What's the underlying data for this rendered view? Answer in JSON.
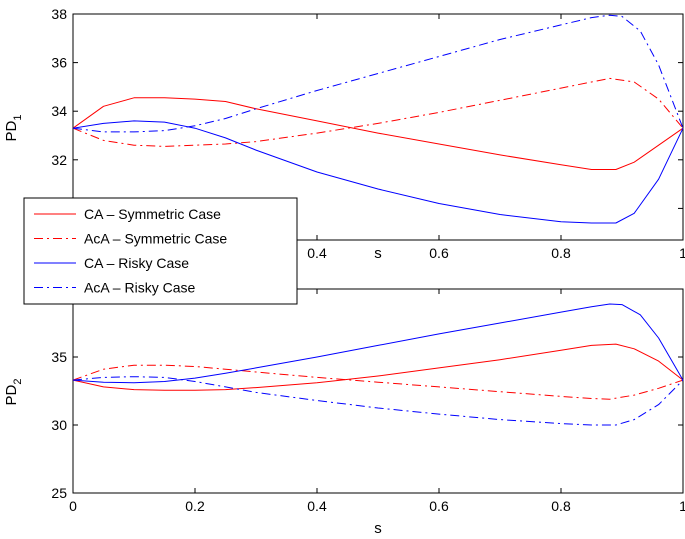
{
  "chart_data": [
    {
      "type": "line",
      "xlabel": "s",
      "ylabel": "PD",
      "ylabel_subscript": "1",
      "xlim": [
        0,
        1
      ],
      "ylim": [
        28.7,
        38
      ],
      "xticks": [
        0.4,
        0.6,
        0.8,
        1
      ],
      "xtick_labels": [
        "0.4",
        "0.6",
        "0.8",
        "1"
      ],
      "yticks": [
        30,
        32,
        34,
        36,
        38
      ],
      "ytick_labels": [
        "30",
        "32",
        "34",
        "36",
        "38"
      ],
      "grid": false,
      "legend": {
        "location": "left",
        "entries": [
          {
            "label": "CA – Symmetric Case",
            "color": "#ff0000",
            "dash": "solid"
          },
          {
            "label": "AcA – Symmetric Case",
            "color": "#ff0000",
            "dash": "dashdot"
          },
          {
            "label": "CA – Risky Case",
            "color": "#0000ff",
            "dash": "solid"
          },
          {
            "label": "AcA – Risky Case",
            "color": "#0000ff",
            "dash": "dashdot"
          }
        ]
      },
      "series": [
        {
          "name": "CA – Symmetric Case",
          "color": "#ff0000",
          "dash": "solid",
          "x": [
            0,
            0.05,
            0.1,
            0.15,
            0.2,
            0.25,
            0.3,
            0.4,
            0.5,
            0.6,
            0.7,
            0.8,
            0.85,
            0.89,
            0.92,
            0.96,
            1
          ],
          "y": [
            33.3,
            34.2,
            34.55,
            34.55,
            34.5,
            34.4,
            34.1,
            33.6,
            33.1,
            32.65,
            32.2,
            31.8,
            31.6,
            31.6,
            31.9,
            32.6,
            33.3
          ]
        },
        {
          "name": "AcA – Symmetric Case",
          "color": "#ff0000",
          "dash": "dashdot",
          "x": [
            0,
            0.05,
            0.1,
            0.15,
            0.2,
            0.25,
            0.3,
            0.4,
            0.5,
            0.6,
            0.7,
            0.8,
            0.85,
            0.88,
            0.92,
            0.96,
            1
          ],
          "y": [
            33.3,
            32.8,
            32.6,
            32.55,
            32.6,
            32.65,
            32.75,
            33.1,
            33.5,
            33.95,
            34.45,
            34.95,
            35.2,
            35.35,
            35.2,
            34.5,
            33.3
          ]
        },
        {
          "name": "CA – Risky Case",
          "color": "#0000ff",
          "dash": "solid",
          "x": [
            0,
            0.05,
            0.1,
            0.15,
            0.2,
            0.25,
            0.3,
            0.4,
            0.5,
            0.6,
            0.7,
            0.8,
            0.85,
            0.89,
            0.92,
            0.96,
            1
          ],
          "y": [
            33.3,
            33.5,
            33.6,
            33.55,
            33.3,
            32.9,
            32.4,
            31.5,
            30.8,
            30.2,
            29.75,
            29.45,
            29.4,
            29.4,
            29.8,
            31.2,
            33.3
          ]
        },
        {
          "name": "AcA – Risky Case",
          "color": "#0000ff",
          "dash": "dashdot",
          "x": [
            0,
            0.05,
            0.1,
            0.15,
            0.2,
            0.25,
            0.3,
            0.4,
            0.5,
            0.6,
            0.7,
            0.8,
            0.85,
            0.88,
            0.9,
            0.93,
            0.96,
            1
          ],
          "y": [
            33.3,
            33.15,
            33.15,
            33.2,
            33.4,
            33.7,
            34.1,
            34.85,
            35.55,
            36.25,
            36.95,
            37.55,
            37.85,
            37.95,
            37.9,
            37.3,
            35.9,
            33.3
          ]
        }
      ]
    },
    {
      "type": "line",
      "xlabel": "s",
      "ylabel": "PD",
      "ylabel_subscript": "2",
      "xlim": [
        0,
        1
      ],
      "ylim": [
        25,
        40
      ],
      "xticks": [
        0,
        0.2,
        0.4,
        0.6,
        0.8,
        1
      ],
      "xtick_labels": [
        "0",
        "0.2",
        "0.4",
        "0.6",
        "0.8",
        "1"
      ],
      "yticks": [
        25,
        30,
        35
      ],
      "ytick_labels": [
        "25",
        "30",
        "35"
      ],
      "grid": false,
      "series": [
        {
          "name": "CA – Symmetric Case",
          "color": "#ff0000",
          "dash": "solid",
          "x": [
            0,
            0.05,
            0.1,
            0.15,
            0.2,
            0.25,
            0.3,
            0.4,
            0.5,
            0.6,
            0.7,
            0.8,
            0.85,
            0.89,
            0.92,
            0.96,
            1
          ],
          "y": [
            33.3,
            32.8,
            32.6,
            32.55,
            32.55,
            32.6,
            32.75,
            33.1,
            33.6,
            34.2,
            34.8,
            35.5,
            35.85,
            35.95,
            35.6,
            34.7,
            33.3
          ]
        },
        {
          "name": "AcA – Symmetric Case",
          "color": "#ff0000",
          "dash": "dashdot",
          "x": [
            0,
            0.05,
            0.1,
            0.15,
            0.2,
            0.25,
            0.3,
            0.4,
            0.5,
            0.6,
            0.7,
            0.8,
            0.85,
            0.88,
            0.92,
            0.96,
            1
          ],
          "y": [
            33.3,
            34.1,
            34.4,
            34.4,
            34.3,
            34.1,
            33.9,
            33.5,
            33.15,
            32.8,
            32.45,
            32.1,
            31.95,
            31.9,
            32.2,
            32.7,
            33.3
          ]
        },
        {
          "name": "CA – Risky Case",
          "color": "#0000ff",
          "dash": "solid",
          "x": [
            0,
            0.05,
            0.1,
            0.15,
            0.2,
            0.25,
            0.3,
            0.4,
            0.5,
            0.6,
            0.7,
            0.8,
            0.85,
            0.88,
            0.9,
            0.93,
            0.96,
            1
          ],
          "y": [
            33.3,
            33.15,
            33.1,
            33.2,
            33.45,
            33.8,
            34.2,
            35.0,
            35.85,
            36.7,
            37.5,
            38.3,
            38.7,
            38.9,
            38.85,
            38.1,
            36.4,
            33.3
          ]
        },
        {
          "name": "AcA – Risky Case",
          "color": "#0000ff",
          "dash": "dashdot",
          "x": [
            0,
            0.05,
            0.1,
            0.15,
            0.2,
            0.25,
            0.3,
            0.4,
            0.5,
            0.6,
            0.7,
            0.8,
            0.85,
            0.89,
            0.92,
            0.96,
            1
          ],
          "y": [
            33.3,
            33.5,
            33.55,
            33.5,
            33.2,
            32.8,
            32.4,
            31.8,
            31.25,
            30.8,
            30.4,
            30.1,
            30.0,
            30.0,
            30.4,
            31.5,
            33.3
          ]
        }
      ]
    }
  ]
}
